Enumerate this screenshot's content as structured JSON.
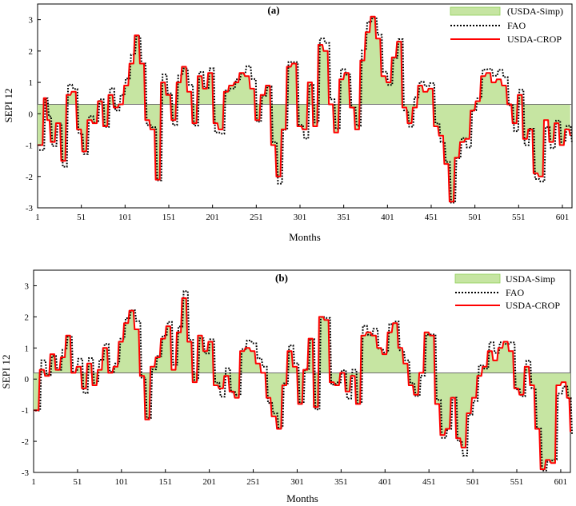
{
  "colors": {
    "simp_fill": "#c6e5a2",
    "simp_line": "#8fcf57",
    "fao": "#000000",
    "crop": "#ff0000",
    "axis": "#000000"
  },
  "chart_data": [
    {
      "type": "area",
      "title": "(a)",
      "xlabel": "Months",
      "ylabel": "SEPI 12",
      "xlim": [
        1,
        612
      ],
      "ylim": [
        -3,
        3.5
      ],
      "baseline": 0.3,
      "xticks": [
        "1",
        "51",
        "101",
        "151",
        "201",
        "251",
        "301",
        "351",
        "401",
        "451",
        "501",
        "551",
        "601"
      ],
      "yticks": [
        "3",
        "2",
        "1",
        "0",
        "-1",
        "-2",
        "-3"
      ],
      "legend_position": "top-right",
      "series": [
        {
          "name": "(USDA-Simp)",
          "style": "area"
        },
        {
          "name": "FAO",
          "style": "dotted"
        },
        {
          "name": "USDA-CROP",
          "style": "solid"
        }
      ],
      "x": [
        1,
        8,
        12,
        16,
        22,
        28,
        34,
        40,
        46,
        52,
        58,
        64,
        70,
        76,
        82,
        88,
        94,
        100,
        106,
        112,
        118,
        124,
        130,
        136,
        142,
        148,
        154,
        160,
        166,
        172,
        178,
        184,
        190,
        196,
        202,
        208,
        214,
        220,
        226,
        232,
        238,
        244,
        250,
        256,
        262,
        268,
        274,
        280,
        286,
        292,
        298,
        304,
        310,
        316,
        322,
        328,
        334,
        340,
        346,
        352,
        358,
        364,
        370,
        376,
        382,
        388,
        394,
        400,
        406,
        412,
        418,
        424,
        430,
        436,
        442,
        448,
        454,
        460,
        466,
        472,
        478,
        484,
        490,
        496,
        502,
        508,
        514,
        520,
        526,
        532,
        538,
        544,
        550,
        556,
        562,
        568,
        574,
        580,
        586,
        592,
        598,
        604,
        610
      ],
      "values": [
        -1.0,
        0.5,
        -0.2,
        -0.9,
        -0.3,
        -1.5,
        0.6,
        0.7,
        -0.5,
        -1.2,
        -0.2,
        -0.3,
        0.4,
        -0.4,
        0.6,
        0.2,
        0.3,
        0.9,
        1.6,
        2.5,
        1.6,
        -0.2,
        -0.5,
        -2.1,
        1.0,
        0.6,
        -0.2,
        1.0,
        1.5,
        0.7,
        -0.3,
        1.2,
        0.8,
        1.3,
        -0.3,
        -0.5,
        0.7,
        0.9,
        1.0,
        1.3,
        1.2,
        0.8,
        -0.2,
        0.6,
        0.9,
        -1.0,
        -2.0,
        -0.5,
        1.5,
        1.6,
        -0.4,
        -0.5,
        1.0,
        -0.4,
        2.2,
        2.0,
        0.3,
        -0.6,
        1.1,
        1.3,
        0.2,
        -0.5,
        1.7,
        2.6,
        3.1,
        2.4,
        1.2,
        1.0,
        1.8,
        2.3,
        0.2,
        -0.3,
        0.2,
        0.9,
        0.7,
        0.8,
        -0.4,
        -0.7,
        -1.6,
        -2.8,
        -1.4,
        -0.9,
        -0.8,
        0.1,
        0.4,
        1.2,
        1.3,
        1.0,
        1.1,
        0.9,
        0.3,
        -0.3,
        0.6,
        -0.8,
        -0.5,
        -1.9,
        -2.0,
        -0.2,
        -0.9,
        -0.3,
        -1.0,
        -0.5,
        -0.7
      ]
    },
    {
      "type": "area",
      "title": "(b)",
      "xlabel": "Months",
      "ylabel": "SEPI 12",
      "xlim": [
        1,
        612
      ],
      "ylim": [
        -3,
        3.5
      ],
      "baseline": 0.2,
      "xticks": [
        "1",
        "51",
        "101",
        "151",
        "201",
        "251",
        "301",
        "351",
        "401",
        "451",
        "501",
        "551",
        "601"
      ],
      "yticks": [
        "3",
        "2",
        "1",
        "0",
        "-1",
        "-2",
        "-3"
      ],
      "legend_position": "top-right",
      "series": [
        {
          "name": "USDA-Simp",
          "style": "area"
        },
        {
          "name": "FAO",
          "style": "dotted"
        },
        {
          "name": "USDA-CROP",
          "style": "solid"
        }
      ],
      "x": [
        1,
        8,
        14,
        20,
        26,
        32,
        38,
        44,
        50,
        56,
        62,
        68,
        74,
        80,
        86,
        92,
        98,
        104,
        110,
        116,
        122,
        128,
        134,
        140,
        146,
        152,
        158,
        164,
        170,
        176,
        182,
        188,
        194,
        200,
        206,
        212,
        218,
        224,
        230,
        236,
        242,
        248,
        254,
        260,
        266,
        272,
        278,
        284,
        290,
        296,
        302,
        308,
        314,
        320,
        326,
        332,
        338,
        344,
        350,
        356,
        362,
        368,
        374,
        380,
        386,
        392,
        398,
        404,
        410,
        416,
        422,
        428,
        434,
        440,
        446,
        452,
        458,
        464,
        470,
        476,
        482,
        488,
        494,
        500,
        506,
        512,
        518,
        524,
        530,
        536,
        542,
        548,
        554,
        560,
        566,
        572,
        578,
        584,
        590,
        596,
        602,
        608,
        612
      ],
      "values": [
        -1.0,
        0.3,
        0.1,
        0.8,
        0.3,
        0.7,
        1.4,
        0.2,
        0.4,
        -0.3,
        0.5,
        -0.2,
        0.3,
        1.0,
        0.2,
        0.4,
        1.2,
        1.8,
        2.2,
        1.6,
        0.1,
        -1.3,
        0.4,
        0.7,
        1.3,
        1.7,
        0.3,
        1.5,
        2.6,
        1.2,
        -0.1,
        1.4,
        0.9,
        1.2,
        -0.2,
        -0.3,
        0.1,
        -0.4,
        -0.6,
        0.9,
        1.0,
        0.9,
        0.5,
        0.2,
        -0.6,
        -1.2,
        -1.6,
        -0.2,
        0.9,
        0.4,
        -0.8,
        0.3,
        1.3,
        -0.9,
        2.0,
        1.9,
        -0.1,
        -0.2,
        0.2,
        -0.4,
        0.1,
        -0.8,
        1.4,
        1.5,
        1.4,
        1.0,
        0.8,
        1.5,
        1.8,
        1.0,
        0.5,
        -0.2,
        -0.5,
        0.2,
        1.5,
        1.4,
        -0.8,
        -1.8,
        -1.6,
        -0.6,
        -1.9,
        -2.2,
        -1.1,
        -0.6,
        0.1,
        0.4,
        0.9,
        0.6,
        1.0,
        1.2,
        0.9,
        -0.3,
        -0.5,
        0.4,
        -0.2,
        -1.6,
        -2.9,
        -2.6,
        -2.7,
        -0.2,
        -0.1,
        -0.6,
        -1.7
      ]
    }
  ]
}
